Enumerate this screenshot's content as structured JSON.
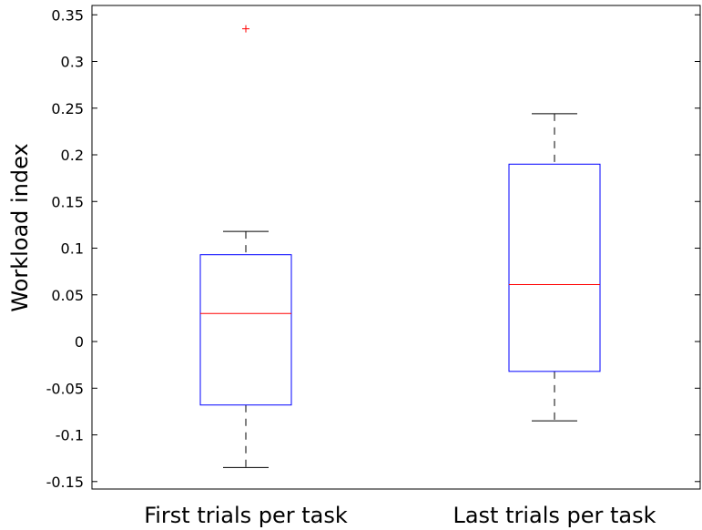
{
  "chart_data": {
    "type": "box",
    "title": "",
    "xlabel": "",
    "ylabel": "Workload index",
    "ylim": [
      -0.158,
      0.36
    ],
    "yticks": [
      {
        "value": 0.35,
        "label": "0.35"
      },
      {
        "value": 0.3,
        "label": "0.3"
      },
      {
        "value": 0.25,
        "label": "0.25"
      },
      {
        "value": 0.2,
        "label": "0.2"
      },
      {
        "value": 0.15,
        "label": "0.15"
      },
      {
        "value": 0.1,
        "label": "0.1"
      },
      {
        "value": 0.05,
        "label": "0.05"
      },
      {
        "value": 0,
        "label": "0"
      },
      {
        "value": -0.05,
        "label": "-0.05"
      },
      {
        "value": -0.1,
        "label": "-0.1"
      },
      {
        "value": -0.15,
        "label": "-0.15"
      }
    ],
    "categories": [
      "First trials per task",
      "Last trials per task"
    ],
    "boxes": [
      {
        "label": "First trials per task",
        "whisker_low": -0.135,
        "q1": -0.068,
        "median": 0.03,
        "q3": 0.093,
        "whisker_high": 0.118,
        "outliers": [
          0.335
        ]
      },
      {
        "label": "Last trials per task",
        "whisker_low": -0.085,
        "q1": -0.032,
        "median": 0.061,
        "q3": 0.19,
        "whisker_high": 0.244,
        "outliers": []
      }
    ],
    "grid": false,
    "legend": "none",
    "colors": {
      "box": "#0000ff",
      "median": "#ff0000",
      "whisker": "#000000",
      "outlier": "#ff0000",
      "axes": "#000000"
    }
  }
}
